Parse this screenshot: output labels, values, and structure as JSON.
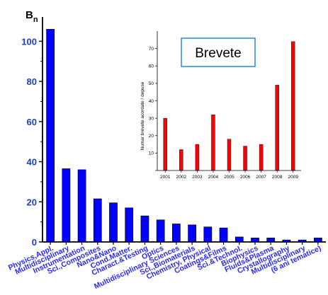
{
  "chart_data": [
    {
      "type": "bar",
      "title": "",
      "ylabel_main": "B",
      "ylabel_sub": "n",
      "xlabel": "",
      "ylim": [
        0,
        110
      ],
      "yticks": [
        0,
        20,
        40,
        60,
        80,
        100
      ],
      "grid": false,
      "legend": "none",
      "bar_color": "#0000ff",
      "tick_color": "#1f3fbf",
      "xtick_color": "#2a2ae0",
      "categories": [
        "Physics,Appl.",
        "Multidisciplinary",
        "Instrumentation",
        "Sci.,Composites",
        "Nano&Nano",
        "Cond.Matter.",
        "Charact.&Testing",
        "Optics",
        "Multidisciplinary Sciences",
        "Sci.,Biomaterials",
        "Chemistry, Physical",
        "Coatings&Films",
        "Sci.&Technol.",
        "Biophysics",
        "Fluids&Plasma",
        "Crystallography",
        "Multidisciplinary",
        "(6 ani tematice)"
      ],
      "values": [
        106,
        36.5,
        36,
        21.5,
        19.5,
        17,
        13,
        11,
        9,
        8.5,
        7.5,
        7,
        2.5,
        2,
        2,
        1,
        1,
        2
      ]
    },
    {
      "type": "bar",
      "title": "Brevete",
      "ylabel": "Numar brevete acordate / depuse",
      "xlabel": "",
      "ylim": [
        0,
        80
      ],
      "yticks": [
        0,
        10,
        20,
        30,
        40,
        50,
        60,
        70
      ],
      "grid": false,
      "legend": "none",
      "bar_color": "#ff0000",
      "categories": [
        "2001",
        "2002",
        "2003",
        "2004",
        "2005",
        "2006",
        "2007",
        "2008",
        "2009"
      ],
      "values": [
        30,
        12,
        15,
        32,
        18,
        14,
        15,
        49,
        74
      ]
    }
  ]
}
